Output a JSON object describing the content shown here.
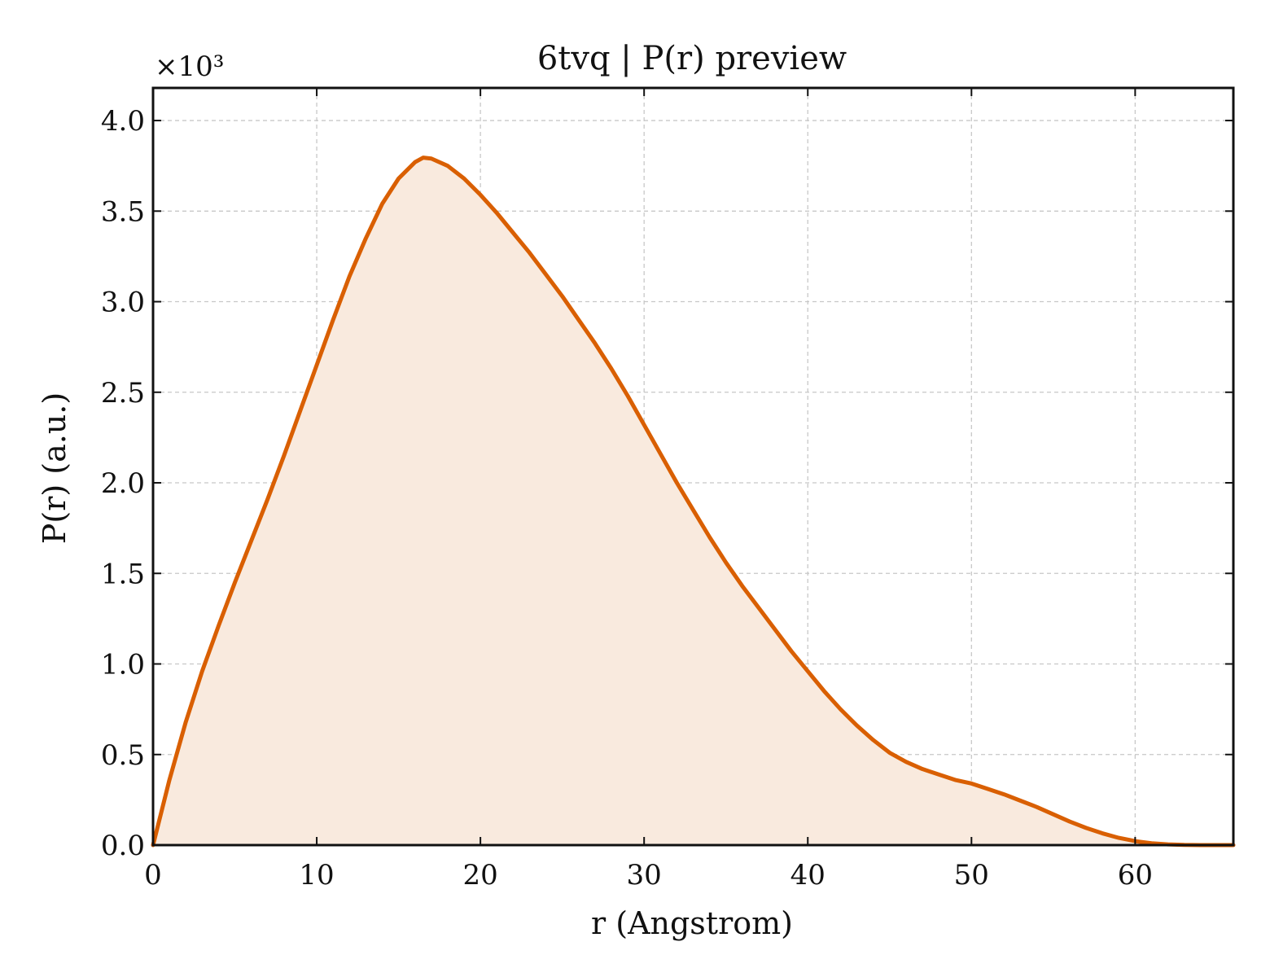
{
  "chart_data": {
    "type": "area",
    "title": "6tvq | P(r) preview",
    "xlabel": "r (Angstrom)",
    "ylabel": "P(r) (a.u.)",
    "y_multiplier_label": "×10³",
    "xlim": [
      0,
      66
    ],
    "ylim": [
      0,
      4.18
    ],
    "x_ticks": [
      0,
      10,
      20,
      30,
      40,
      50,
      60
    ],
    "x_tick_labels": [
      "0",
      "10",
      "20",
      "30",
      "40",
      "50",
      "60"
    ],
    "y_ticks": [
      0,
      0.5,
      1.0,
      1.5,
      2.0,
      2.5,
      3.0,
      3.5,
      4.0
    ],
    "y_tick_labels": [
      "0.0",
      "0.5",
      "1.0",
      "1.5",
      "2.0",
      "2.5",
      "3.0",
      "3.5",
      "4.0"
    ],
    "grid": true,
    "line_color": "#d95f02",
    "fill_color": "#f9eade",
    "series": [
      {
        "x": [
          0,
          1,
          2,
          3,
          4,
          5,
          6,
          7,
          8,
          9,
          10,
          11,
          12,
          13,
          14,
          15,
          16,
          16.5,
          17,
          18,
          19,
          20,
          21,
          22,
          23,
          24,
          25,
          26,
          27,
          28,
          29,
          30,
          31,
          32,
          33,
          34,
          35,
          36,
          37,
          38,
          39,
          40,
          41,
          42,
          43,
          44,
          45,
          46,
          47,
          48,
          49,
          50,
          51,
          52,
          53,
          54,
          55,
          56,
          57,
          58,
          59,
          60,
          61,
          62,
          63,
          64,
          65,
          66
        ],
        "values": [
          0,
          0.36,
          0.68,
          0.96,
          1.21,
          1.45,
          1.68,
          1.91,
          2.15,
          2.4,
          2.65,
          2.9,
          3.14,
          3.35,
          3.54,
          3.68,
          3.77,
          3.795,
          3.79,
          3.75,
          3.68,
          3.59,
          3.49,
          3.38,
          3.27,
          3.15,
          3.03,
          2.9,
          2.77,
          2.63,
          2.48,
          2.32,
          2.16,
          2.0,
          1.85,
          1.7,
          1.56,
          1.43,
          1.31,
          1.19,
          1.07,
          0.96,
          0.85,
          0.75,
          0.66,
          0.58,
          0.51,
          0.46,
          0.42,
          0.39,
          0.36,
          0.34,
          0.31,
          0.28,
          0.245,
          0.21,
          0.17,
          0.13,
          0.095,
          0.065,
          0.04,
          0.022,
          0.01,
          0.004,
          0.001,
          0,
          0,
          0
        ]
      }
    ]
  }
}
